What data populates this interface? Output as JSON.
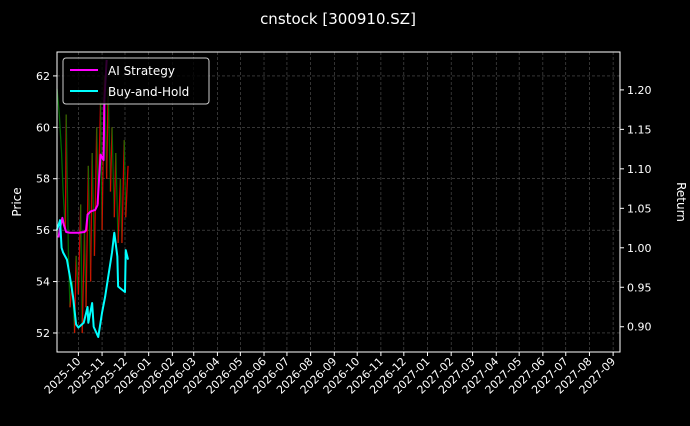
{
  "chart_data": {
    "type": "line",
    "title": "cnstock [300910.SZ]",
    "ylabel": "Price",
    "y2label": "Return",
    "xlim": [
      "2025-09-03",
      "2027-09-10"
    ],
    "ylim": [
      51.26,
      62.93
    ],
    "y2lim": [
      0.868,
      1.248
    ],
    "grid": true,
    "legend_position": "top-left",
    "x_ticks": [
      "2025-10",
      "2025-11",
      "2025-12",
      "2026-01",
      "2026-02",
      "2026-03",
      "2026-04",
      "2026-05",
      "2026-06",
      "2026-07",
      "2026-08",
      "2026-09",
      "2026-10",
      "2026-11",
      "2026-12",
      "2027-01",
      "2027-02",
      "2027-03",
      "2027-04",
      "2027-05",
      "2027-06",
      "2027-07",
      "2027-08",
      "2027-09"
    ],
    "y_ticks": [
      52,
      54,
      56,
      58,
      60,
      62
    ],
    "y2_ticks": [
      "0.90",
      "0.95",
      "1.00",
      "1.05",
      "1.10",
      "1.15",
      "1.20"
    ],
    "colors": {
      "up": "#ff0000",
      "down": "#008000",
      "ai": "#ff00ff",
      "bh": "#00ffff",
      "background": "#000000"
    },
    "price": {
      "dates": [
        "2025-09-03",
        "2025-09-06",
        "2025-09-09",
        "2025-09-11",
        "2025-09-14",
        "2025-09-15",
        "2025-09-18",
        "2025-09-20",
        "2025-09-23",
        "2025-09-26",
        "2025-09-28",
        "2025-10-01",
        "2025-10-04",
        "2025-10-06",
        "2025-10-09",
        "2025-10-11",
        "2025-10-14",
        "2025-10-17",
        "2025-10-19",
        "2025-10-22",
        "2025-10-25",
        "2025-10-27",
        "2025-10-30",
        "2025-11-01",
        "2025-11-04",
        "2025-11-07",
        "2025-11-09",
        "2025-11-12",
        "2025-11-14",
        "2025-11-17",
        "2025-11-19",
        "2025-11-22",
        "2025-11-25",
        "2025-11-27",
        "2025-11-30",
        "2025-12-02",
        "2025-12-05"
      ],
      "close": [
        61.5,
        60.5,
        59,
        57.5,
        56,
        60.5,
        55,
        53,
        54,
        52,
        55,
        53.5,
        57,
        52,
        56,
        53,
        58.5,
        54,
        59,
        55,
        60,
        57,
        61,
        56,
        62,
        58,
        61.5,
        57.5,
        60,
        56.5,
        59,
        55.5,
        58,
        55.5,
        59.5,
        56.5,
        58.5
      ]
    },
    "series": [
      {
        "name": "AI Strategy",
        "axis": "right",
        "dates": [
          "2025-09-05",
          "2025-09-07",
          "2025-09-10",
          "2025-09-12",
          "2025-09-15",
          "2025-09-20",
          "2025-10-01",
          "2025-10-09",
          "2025-10-11",
          "2025-10-13",
          "2025-10-17",
          "2025-10-23",
          "2025-10-26",
          "2025-10-28",
          "2025-10-30",
          "2025-11-03",
          "2025-11-04",
          "2025-11-07"
        ],
        "values": [
          1.013,
          1.025,
          1.038,
          1.029,
          1.02,
          1.019,
          1.019,
          1.02,
          1.022,
          1.042,
          1.046,
          1.048,
          1.054,
          1.086,
          1.118,
          1.111,
          1.187,
          1.238
        ]
      },
      {
        "name": "Buy-and-Hold",
        "axis": "right",
        "dates": [
          "2025-09-03",
          "2025-09-07",
          "2025-09-09",
          "2025-09-11",
          "2025-09-16",
          "2025-09-20",
          "2025-09-24",
          "2025-09-28",
          "2025-10-01",
          "2025-10-08",
          "2025-10-13",
          "2025-10-14",
          "2025-10-19",
          "2025-10-21",
          "2025-10-27",
          "2025-11-01",
          "2025-11-05",
          "2025-11-09",
          "2025-11-14",
          "2025-11-17",
          "2025-11-21",
          "2025-11-22",
          "2025-11-27",
          "2025-12-01",
          "2025-12-02",
          "2025-12-05"
        ],
        "values": [
          1.023,
          1.035,
          1.0,
          0.994,
          0.985,
          0.963,
          0.938,
          0.903,
          0.899,
          0.905,
          0.925,
          0.905,
          0.93,
          0.9,
          0.887,
          0.918,
          0.938,
          0.963,
          0.994,
          1.019,
          0.989,
          0.951,
          0.947,
          0.944,
          0.997,
          0.985
        ]
      }
    ]
  }
}
